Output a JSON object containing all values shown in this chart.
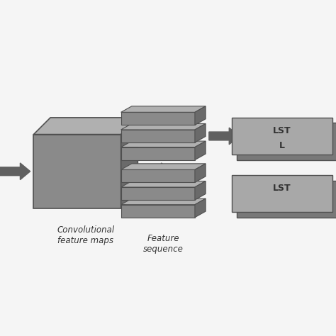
{
  "bg_color": "#f5f5f5",
  "gray_face": "#8a8a8a",
  "gray_top": "#b0b0b0",
  "gray_side": "#6a6a6a",
  "gray_border": "#505050",
  "lstm_dark": "#787878",
  "lstm_light": "#a8a8a8",
  "arrow_color": "#606060",
  "label_conv": "Convolutional\nfeature maps",
  "label_feat": "Feature\nsequence",
  "lstm_text_top": "LST",
  "lstm_text_bot": "L",
  "font_size_label": 8.5,
  "font_size_lstm": 9
}
